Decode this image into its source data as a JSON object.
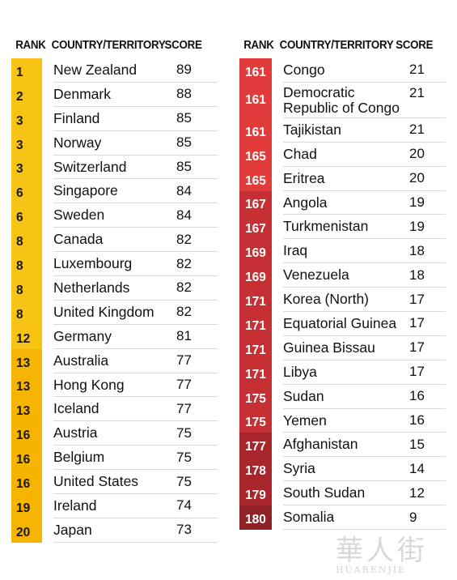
{
  "headers": {
    "rank": "RANK",
    "country": "COUNTRY/TERRITORY",
    "score": "SCORE"
  },
  "colors": {
    "yellow": "#f7c415",
    "gold": "#f5b400",
    "orange": "#f7a21b",
    "red": "#e23b3c",
    "crimson": "#c62f33",
    "darkred": "#a8262b",
    "maroon": "#8e2227"
  },
  "chart_data": {
    "type": "table",
    "columns": [
      "RANK",
      "COUNTRY/TERRITORY",
      "SCORE"
    ],
    "tables": [
      {
        "rows": [
          {
            "rank": 1,
            "country": "New Zealand",
            "score": 89,
            "color": "#f7c415"
          },
          {
            "rank": 2,
            "country": "Denmark",
            "score": 88,
            "color": "#f7c415"
          },
          {
            "rank": 3,
            "country": "Finland",
            "score": 85,
            "color": "#f7c415"
          },
          {
            "rank": 3,
            "country": "Norway",
            "score": 85,
            "color": "#f7c415"
          },
          {
            "rank": 3,
            "country": "Switzerland",
            "score": 85,
            "color": "#f7c415"
          },
          {
            "rank": 6,
            "country": "Singapore",
            "score": 84,
            "color": "#f7c415"
          },
          {
            "rank": 6,
            "country": "Sweden",
            "score": 84,
            "color": "#f7c415"
          },
          {
            "rank": 8,
            "country": "Canada",
            "score": 82,
            "color": "#f7c415"
          },
          {
            "rank": 8,
            "country": "Luxembourg",
            "score": 82,
            "color": "#f7c415"
          },
          {
            "rank": 8,
            "country": "Netherlands",
            "score": 82,
            "color": "#f7c415"
          },
          {
            "rank": 8,
            "country": "United Kingdom",
            "score": 82,
            "color": "#f7c415"
          },
          {
            "rank": 12,
            "country": "Germany",
            "score": 81,
            "color": "#f7c415"
          },
          {
            "rank": 13,
            "country": "Australia",
            "score": 77,
            "color": "#f5b400"
          },
          {
            "rank": 13,
            "country": "Hong Kong",
            "score": 77,
            "color": "#f5b400"
          },
          {
            "rank": 13,
            "country": "Iceland",
            "score": 77,
            "color": "#f5b400"
          },
          {
            "rank": 16,
            "country": "Austria",
            "score": 75,
            "color": "#f5b400"
          },
          {
            "rank": 16,
            "country": "Belgium",
            "score": 75,
            "color": "#f5b400"
          },
          {
            "rank": 16,
            "country": "United States",
            "score": 75,
            "color": "#f5b400"
          },
          {
            "rank": 19,
            "country": "Ireland",
            "score": 74,
            "color": "#f5b400"
          },
          {
            "rank": 20,
            "country": "Japan",
            "score": 73,
            "color": "#f5b400"
          }
        ]
      },
      {
        "rows": [
          {
            "rank": 161,
            "country": "Congo",
            "score": 21,
            "color": "#e23b3c"
          },
          {
            "rank": 161,
            "country": "Democratic Republic of Congo",
            "score": 21,
            "color": "#e23b3c"
          },
          {
            "rank": 161,
            "country": "Tajikistan",
            "score": 21,
            "color": "#e23b3c"
          },
          {
            "rank": 165,
            "country": "Chad",
            "score": 20,
            "color": "#e23b3c"
          },
          {
            "rank": 165,
            "country": "Eritrea",
            "score": 20,
            "color": "#e23b3c"
          },
          {
            "rank": 167,
            "country": "Angola",
            "score": 19,
            "color": "#c62f33"
          },
          {
            "rank": 167,
            "country": "Turkmenistan",
            "score": 19,
            "color": "#c62f33"
          },
          {
            "rank": 169,
            "country": "Iraq",
            "score": 18,
            "color": "#c62f33"
          },
          {
            "rank": 169,
            "country": "Venezuela",
            "score": 18,
            "color": "#c62f33"
          },
          {
            "rank": 171,
            "country": "Korea (North)",
            "score": 17,
            "color": "#c62f33"
          },
          {
            "rank": 171,
            "country": "Equatorial Guinea",
            "score": 17,
            "color": "#c62f33"
          },
          {
            "rank": 171,
            "country": "Guinea Bissau",
            "score": 17,
            "color": "#c62f33"
          },
          {
            "rank": 171,
            "country": "Libya",
            "score": 17,
            "color": "#c62f33"
          },
          {
            "rank": 175,
            "country": "Sudan",
            "score": 16,
            "color": "#c62f33"
          },
          {
            "rank": 175,
            "country": "Yemen",
            "score": 16,
            "color": "#c62f33"
          },
          {
            "rank": 177,
            "country": "Afghanistan",
            "score": 15,
            "color": "#a8262b"
          },
          {
            "rank": 178,
            "country": "Syria",
            "score": 14,
            "color": "#a8262b"
          },
          {
            "rank": 179,
            "country": "South Sudan",
            "score": 12,
            "color": "#a8262b"
          },
          {
            "rank": 180,
            "country": "Somalia",
            "score": 9,
            "color": "#8e2227"
          }
        ]
      }
    ]
  },
  "watermark": {
    "glyphs": "華人街",
    "text": "HUARENJIE"
  }
}
